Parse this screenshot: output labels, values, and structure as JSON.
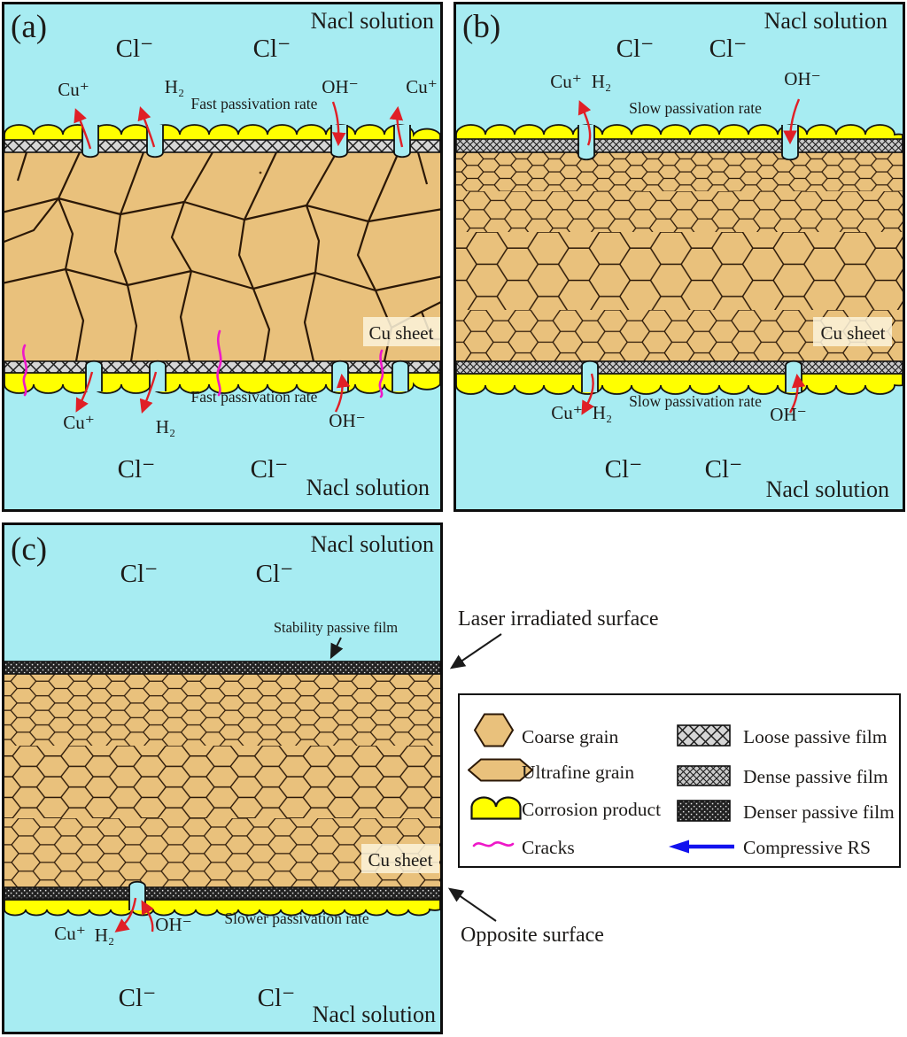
{
  "colors": {
    "solution": "#a7ecf2",
    "grain": "#e9c17c",
    "grain_line": "#2b1807",
    "corrosion": "#ffff00",
    "loose_film": "#d6d6d6",
    "dense_film": "#c9c9c9",
    "denser_film": "#222222",
    "hatch_line": "#1c1c1c",
    "crack": "#ee18c8",
    "arrow_red": "#e01f26",
    "compressive_blue": "#1212ee",
    "text": "#1d1b19",
    "border": "#0d0d0d",
    "cu_sheet_bg": "#fbf2d9"
  },
  "panels": {
    "a": {
      "label": "(a)",
      "top": {
        "solution": "Nacl solution",
        "cl1": "Cl⁻",
        "cl2": "Cl⁻",
        "cu1": "Cu⁺",
        "h2": "H₂",
        "rate": "Fast passivation rate",
        "oh": "OH⁻",
        "cu2": "Cu⁺"
      },
      "bottom": {
        "rate": "Fast passivation rate",
        "cu1": "Cu⁺",
        "h2": "H₂",
        "oh": "OH⁻",
        "cl1": "Cl⁻",
        "cl2": "Cl⁻",
        "solution": "Nacl solution"
      },
      "cu_sheet": "Cu sheet"
    },
    "b": {
      "label": "(b)",
      "top": {
        "solution": "Nacl solution",
        "cl1": "Cl⁻",
        "cl2": "Cl⁻",
        "cu1": "Cu⁺",
        "h2": "H₂",
        "rate": "Slow passivation rate",
        "oh": "OH⁻"
      },
      "bottom": {
        "rate": "Slow passivation rate",
        "cu1": "Cu⁺",
        "h2": "H₂",
        "oh": "OH⁻",
        "cl1": "Cl⁻",
        "cl2": "Cl⁻",
        "solution": "Nacl solution"
      },
      "cu_sheet": "Cu sheet"
    },
    "c": {
      "label": "(c)",
      "top": {
        "solution": "Nacl solution",
        "cl1": "Cl⁻",
        "cl2": "Cl⁻",
        "film_label": "Stability passive film"
      },
      "bottom": {
        "cu1": "Cu⁺",
        "h2": "H₂",
        "oh": "OH⁻",
        "rate": "Slower passivation rate",
        "cl1": "Cl⁻",
        "cl2": "Cl⁻",
        "solution": "Nacl solution"
      },
      "cu_sheet": "Cu sheet"
    }
  },
  "annotations": {
    "laser": "Laser irradiated surface",
    "opposite": "Opposite surface"
  },
  "legend": {
    "items": [
      {
        "name": "coarse-grain",
        "label": "Coarse grain"
      },
      {
        "name": "ultrafine-grain",
        "label": "Ultrafine grain"
      },
      {
        "name": "corrosion-product",
        "label": "Corrosion product"
      },
      {
        "name": "cracks",
        "label": "Cracks"
      },
      {
        "name": "loose-passive-film",
        "label": "Loose passive film"
      },
      {
        "name": "dense-passive-film",
        "label": "Dense passive film"
      },
      {
        "name": "denser-passive-film",
        "label": "Denser passive film"
      },
      {
        "name": "compressive-rs",
        "label": "Compressive RS"
      }
    ]
  }
}
